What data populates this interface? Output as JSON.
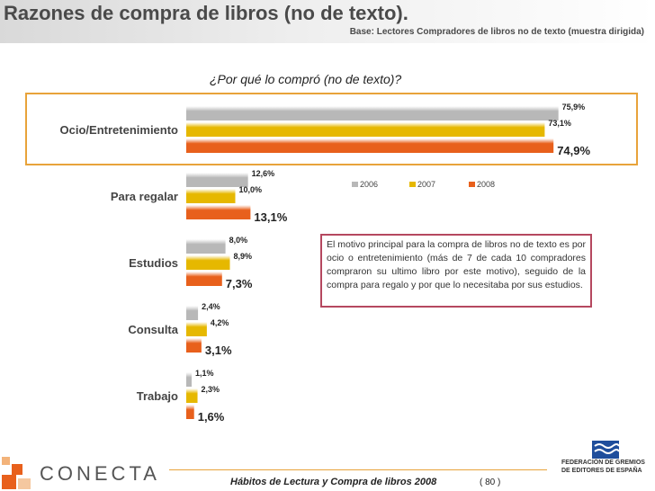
{
  "header": {
    "title": "Razones de compra de libros (no de texto).",
    "base": "Base: Lectores Compradores de libros no de texto (muestra dirigida)"
  },
  "chart_data": {
    "type": "bar",
    "orientation": "horizontal",
    "title": "¿Por qué lo compró (no de texto)?",
    "categories": [
      "Ocio/Entretenimiento",
      "Para regalar",
      "Estudios",
      "Consulta",
      "Trabajo"
    ],
    "series": [
      {
        "name": "2006",
        "color": "#b8b8b8",
        "values": [
          75.9,
          12.6,
          8.0,
          2.4,
          1.1
        ],
        "labels": [
          "75,9%",
          "12,6%",
          "8,0%",
          "2,4%",
          "1,1%"
        ]
      },
      {
        "name": "2007",
        "color": "#e6b800",
        "values": [
          73.1,
          10.0,
          8.9,
          4.2,
          2.3
        ],
        "labels": [
          "73,1%",
          "10,0%",
          "8,9%",
          "4,2%",
          "2,3%"
        ]
      },
      {
        "name": "2008",
        "color": "#e8601c",
        "values": [
          74.9,
          13.1,
          7.3,
          3.1,
          1.6
        ],
        "labels": [
          "74,9%",
          "13,1%",
          "7,3%",
          "3,1%",
          "1,6%"
        ]
      }
    ],
    "legend": "top-right",
    "highlighted_category": "Ocio/Entretenimiento",
    "grid": false
  },
  "note": "El motivo principal para la compra de libros no de texto es por ocio o entretenimiento (más de 7 de cada 10 compradores compraron su ultimo libro por este motivo), seguido de la compra para regalo y por que lo necesitaba por sus estudios.",
  "footer": {
    "publication": "Hábitos de Lectura y Compra de libros 2008",
    "page": "( 80 )",
    "brand": "CONECTA",
    "federation": "FEDERACIÓN DE GREMIOS\nDE EDITORES DE ESPAÑA"
  }
}
